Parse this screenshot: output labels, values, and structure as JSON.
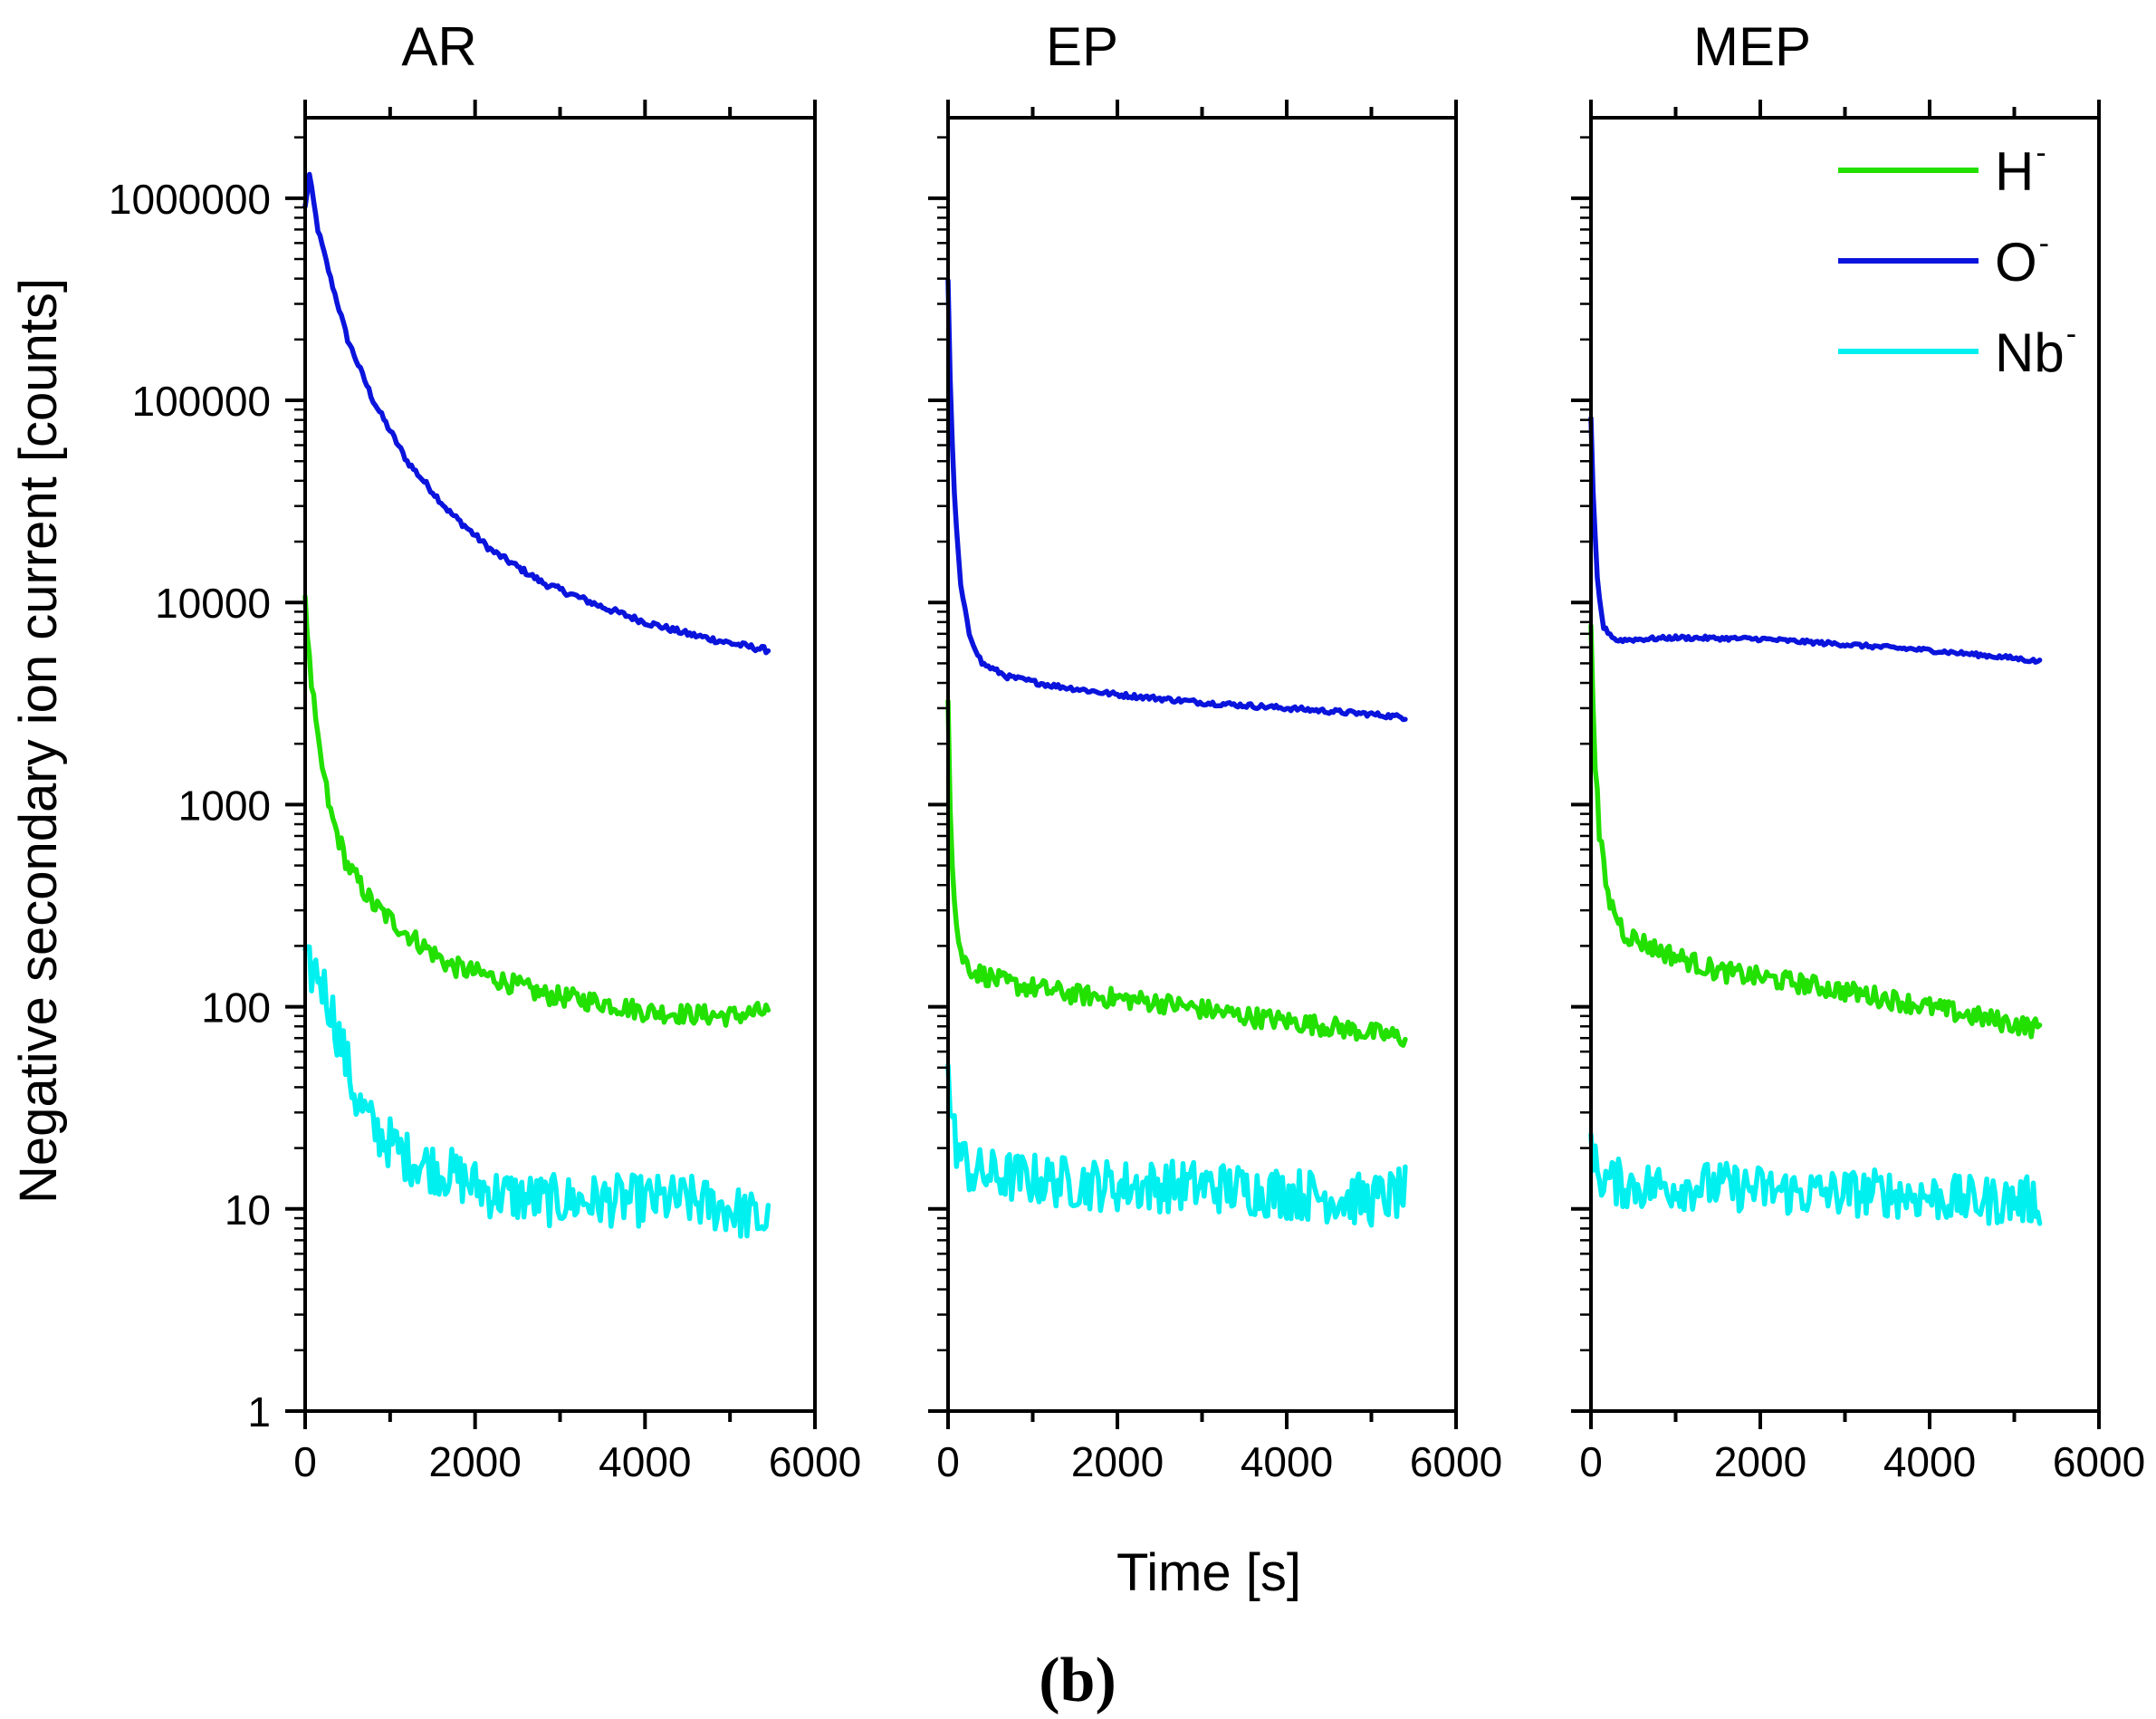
{
  "figure_label": "(b)",
  "chart_data": {
    "type": "line",
    "y_scale": "log",
    "xlabel": "Time [s]",
    "ylabel": "Negative secondary ion current [counts]",
    "xlim": [
      0,
      6000
    ],
    "ylim": [
      1,
      2500000
    ],
    "x_ticks": [
      0,
      2000,
      4000,
      6000
    ],
    "x_tick_labels": [
      "0",
      "2000",
      "4000",
      "6000"
    ],
    "y_ticks": [
      1,
      10,
      100,
      1000,
      10000,
      100000,
      1000000
    ],
    "y_tick_labels": [
      "1",
      "10",
      "100",
      "1000",
      "10000",
      "100000",
      "1000000"
    ],
    "legend": {
      "position": "top-right",
      "entries": [
        {
          "name": "H",
          "sup": "-",
          "color": "#22e000"
        },
        {
          "name": "O",
          "sup": "-",
          "color": "#0a14dc"
        },
        {
          "name": "Nb",
          "sup": "-",
          "color": "#00f0f0"
        }
      ]
    },
    "panels": [
      {
        "title": "AR",
        "series": [
          {
            "name": "O-",
            "color": "#0a14dc",
            "noise": 0.015,
            "points": [
              [
                0,
                900000
              ],
              [
                50,
                1300000
              ],
              [
                150,
                700000
              ],
              [
                300,
                400000
              ],
              [
                500,
                200000
              ],
              [
                800,
                100000
              ],
              [
                1200,
                50000
              ],
              [
                1700,
                28000
              ],
              [
                2200,
                18000
              ],
              [
                2800,
                12500
              ],
              [
                3500,
                9500
              ],
              [
                4000,
                8000
              ],
              [
                4500,
                7000
              ],
              [
                5000,
                6300
              ],
              [
                5450,
                5800
              ]
            ]
          },
          {
            "name": "H-",
            "color": "#22e000",
            "noise": 0.05,
            "points": [
              [
                0,
                11000
              ],
              [
                50,
                5000
              ],
              [
                150,
                2000
              ],
              [
                300,
                900
              ],
              [
                500,
                500
              ],
              [
                800,
                320
              ],
              [
                1200,
                230
              ],
              [
                1700,
                160
              ],
              [
                2200,
                140
              ],
              [
                2800,
                115
              ],
              [
                3500,
                105
              ],
              [
                4000,
                95
              ],
              [
                4500,
                92
              ],
              [
                5000,
                90
              ],
              [
                5450,
                95
              ]
            ]
          },
          {
            "name": "Nb-",
            "color": "#00f0f0",
            "noise": 0.13,
            "points": [
              [
                0,
                150
              ],
              [
                150,
                150
              ],
              [
                300,
                100
              ],
              [
                450,
                60
              ],
              [
                600,
                35
              ],
              [
                800,
                25
              ],
              [
                1200,
                18
              ],
              [
                1700,
                15
              ],
              [
                2200,
                12
              ],
              [
                2800,
                11
              ],
              [
                3500,
                11
              ],
              [
                4000,
                11
              ],
              [
                4500,
                11
              ],
              [
                5000,
                10
              ],
              [
                5450,
                8.5
              ]
            ]
          }
        ]
      },
      {
        "title": "EP",
        "series": [
          {
            "name": "O-",
            "color": "#0a14dc",
            "noise": 0.012,
            "points": [
              [
                0,
                400000
              ],
              [
                30,
                100000
              ],
              [
                80,
                30000
              ],
              [
                150,
                12000
              ],
              [
                250,
                7000
              ],
              [
                400,
                5000
              ],
              [
                700,
                4300
              ],
              [
                1200,
                3900
              ],
              [
                2000,
                3500
              ],
              [
                3000,
                3200
              ],
              [
                4000,
                3000
              ],
              [
                5000,
                2800
              ],
              [
                5400,
                2700
              ]
            ]
          },
          {
            "name": "H-",
            "color": "#22e000",
            "noise": 0.05,
            "points": [
              [
                0,
                3500
              ],
              [
                30,
                800
              ],
              [
                80,
                300
              ],
              [
                150,
                180
              ],
              [
                300,
                150
              ],
              [
                700,
                130
              ],
              [
                1500,
                115
              ],
              [
                2500,
                105
              ],
              [
                3500,
                90
              ],
              [
                4500,
                80
              ],
              [
                5400,
                70
              ]
            ]
          },
          {
            "name": "Nb-",
            "color": "#00f0f0",
            "noise": 0.13,
            "points": [
              [
                0,
                45
              ],
              [
                50,
                25
              ],
              [
                150,
                18
              ],
              [
                300,
                15
              ],
              [
                1000,
                14
              ],
              [
                2000,
                13
              ],
              [
                3000,
                13
              ],
              [
                4000,
                12
              ],
              [
                5000,
                11
              ],
              [
                5400,
                12
              ]
            ]
          }
        ]
      },
      {
        "title": "MEP",
        "series": [
          {
            "name": "O-",
            "color": "#0a14dc",
            "noise": 0.01,
            "points": [
              [
                0,
                80000
              ],
              [
                30,
                30000
              ],
              [
                80,
                12000
              ],
              [
                150,
                7500
              ],
              [
                300,
                6500
              ],
              [
                1000,
                6700
              ],
              [
                2000,
                6600
              ],
              [
                3000,
                6200
              ],
              [
                4000,
                5800
              ],
              [
                5000,
                5300
              ],
              [
                5300,
                5100
              ]
            ]
          },
          {
            "name": "H-",
            "color": "#22e000",
            "noise": 0.05,
            "points": [
              [
                0,
                8000
              ],
              [
                40,
                2000
              ],
              [
                100,
                700
              ],
              [
                200,
                350
              ],
              [
                400,
                230
              ],
              [
                800,
                190
              ],
              [
                1500,
                150
              ],
              [
                2500,
                130
              ],
              [
                3500,
                110
              ],
              [
                4500,
                90
              ],
              [
                5300,
                78
              ]
            ]
          },
          {
            "name": "Nb-",
            "color": "#00f0f0",
            "noise": 0.12,
            "points": [
              [
                0,
                25
              ],
              [
                50,
                16
              ],
              [
                150,
                14
              ],
              [
                500,
                13
              ],
              [
                1500,
                13
              ],
              [
                2500,
                12
              ],
              [
                3500,
                12
              ],
              [
                4500,
                11
              ],
              [
                5300,
                11
              ]
            ]
          }
        ]
      }
    ]
  }
}
